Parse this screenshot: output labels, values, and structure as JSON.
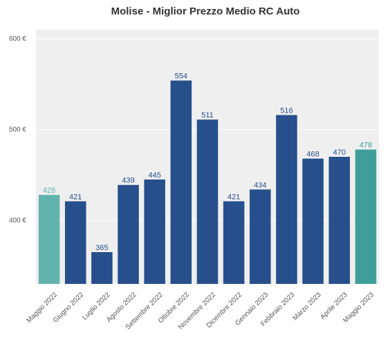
{
  "chart_data": {
    "type": "bar",
    "title": "Molise - Miglior Prezzo Medio RC Auto",
    "xlabel": "",
    "ylabel": "",
    "ylim": [
      330,
      610
    ],
    "yticks": [
      400,
      500,
      600
    ],
    "ytick_labels": [
      "400 €",
      "500 €",
      "600 €"
    ],
    "grid": true,
    "categories": [
      "Maggio 2022",
      "Giugno 2022",
      "Luglio 2022",
      "Agosto 2022",
      "Settembre 2022",
      "Ottobre 2022",
      "Novembre 2022",
      "Dicembre 2022",
      "Gennaio 2023",
      "Febbraio 2023",
      "Marzo 2023",
      "Aprile 2023",
      "Maggio 2023"
    ],
    "values": [
      428,
      421,
      365,
      439,
      445,
      554,
      511,
      421,
      434,
      516,
      468,
      470,
      478
    ],
    "colors": [
      "#62b2ad",
      "#264f8c",
      "#264f8c",
      "#264f8c",
      "#264f8c",
      "#264f8c",
      "#264f8c",
      "#264f8c",
      "#264f8c",
      "#264f8c",
      "#264f8c",
      "#264f8c",
      "#3f9e99"
    ],
    "label_colors": [
      "#62b2ad",
      "#264f8c",
      "#264f8c",
      "#264f8c",
      "#264f8c",
      "#264f8c",
      "#264f8c",
      "#264f8c",
      "#264f8c",
      "#264f8c",
      "#264f8c",
      "#264f8c",
      "#3f9e99"
    ],
    "background": "#efefef"
  }
}
